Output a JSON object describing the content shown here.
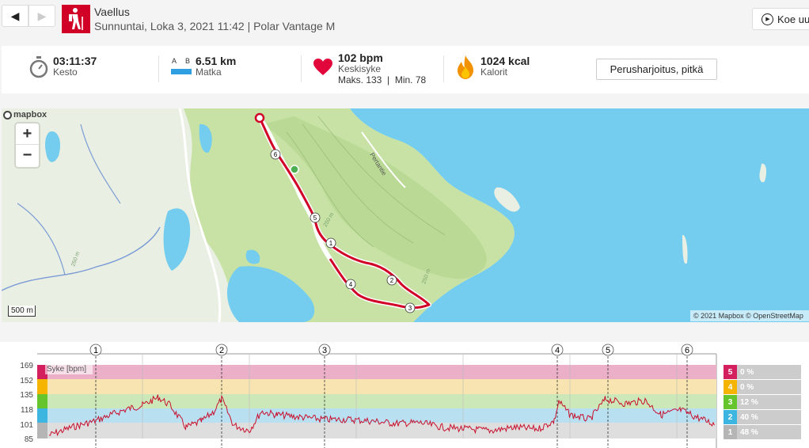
{
  "header": {
    "prev_icon": "chevron-left-icon",
    "next_icon": "chevron-right-icon",
    "sport_icon": "hiking-icon",
    "title": "Vaellus",
    "subtitle": "Sunnuntai, Loka 3, 2021 11:42 | Polar Vantage M",
    "compare_label": "Koe uu"
  },
  "stats": {
    "duration": {
      "value": "03:11:37",
      "label": "Kesto",
      "icon": "stopwatch-icon"
    },
    "distance": {
      "value": "6.51 km",
      "label": "Matka",
      "icon": "ruler-ab-icon",
      "a": "A",
      "b": "B"
    },
    "heart_rate": {
      "value": "102 bpm",
      "label": "Keskisyke",
      "max": "Maks. 133",
      "divider": "|",
      "min": "Min. 78",
      "icon": "heart-icon"
    },
    "calories": {
      "value": "1024 kcal",
      "label": "Kalorit",
      "icon": "flame-icon"
    },
    "training_benefit": "Perusharjoitus, pitkä"
  },
  "map": {
    "zoom_in": "+",
    "zoom_out": "−",
    "logo": "mapbox",
    "scale": "500 m",
    "attribution": "© 2021 Mapbox © OpenStreetMap",
    "road_label": "Pertantie",
    "contour_labels": [
      "250 m",
      "250 m",
      "250 m"
    ],
    "km_markers": [
      "1",
      "2",
      "3",
      "4",
      "5",
      "6"
    ],
    "route_color": "#d10027"
  },
  "chart": {
    "series_label": "Syke [bpm]",
    "y_ticks": [
      "169",
      "152",
      "135",
      "118",
      "101",
      "85"
    ],
    "km_markers": [
      "1",
      "2",
      "3",
      "4",
      "5",
      "6"
    ],
    "zones": [
      {
        "zone": "5",
        "percent": "0 %",
        "color": "#d41f5f"
      },
      {
        "zone": "4",
        "percent": "0 %",
        "color": "#f5b400"
      },
      {
        "zone": "3",
        "percent": "12 %",
        "color": "#66c42c"
      },
      {
        "zone": "2",
        "percent": "40 %",
        "color": "#3cb6e1"
      },
      {
        "zone": "1",
        "percent": "48 %",
        "color": "#b5b5b5"
      }
    ]
  }
}
